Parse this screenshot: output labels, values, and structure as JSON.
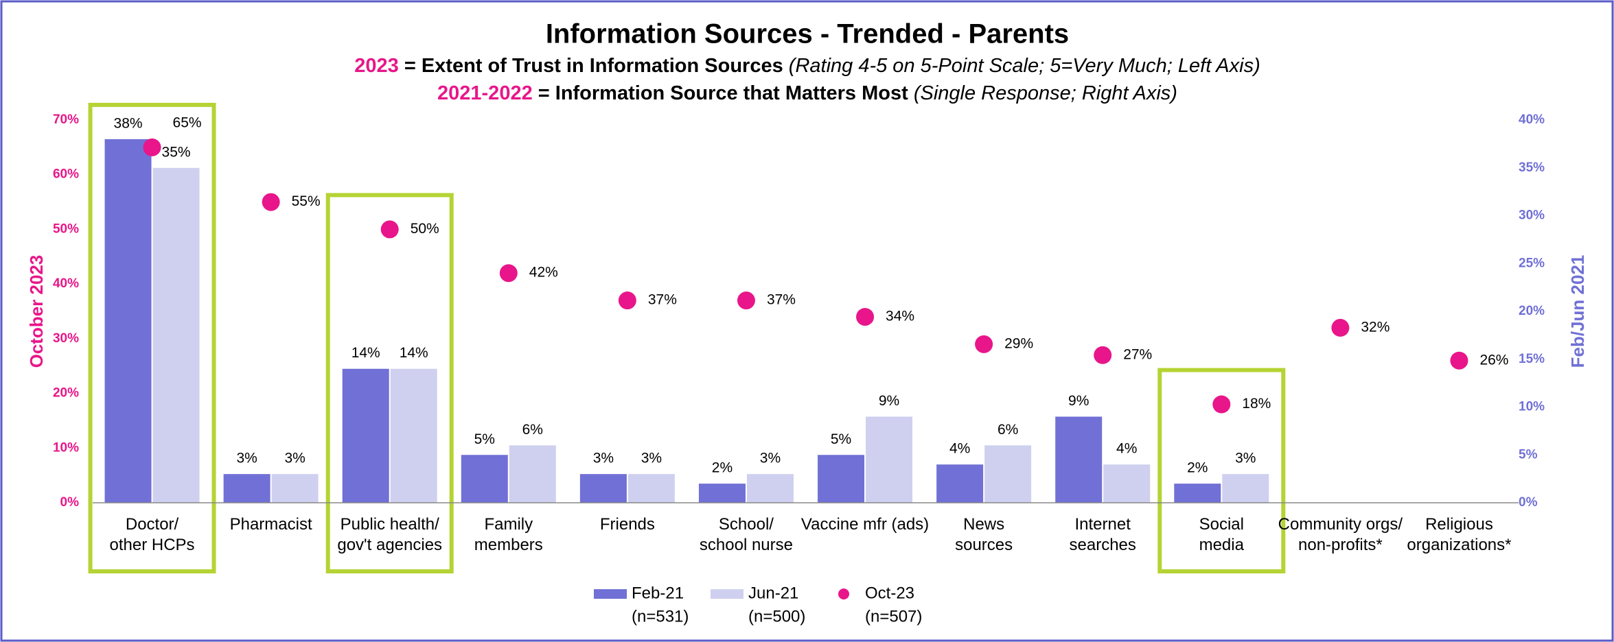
{
  "chart_data": {
    "type": "bar",
    "title": "Information Sources - Trended - Parents",
    "subtitle_lines": [
      {
        "year": "2023",
        "text": "= Extent of Trust in Information Sources",
        "note": "(Rating 4-5 on 5-Point Scale; 5=Very Much; Left Axis)"
      },
      {
        "year": "2021-2022",
        "text": "= Information Source that Matters Most",
        "note": "(Single Response; Right Axis)"
      }
    ],
    "y_label": "October 2023",
    "y2_label": "Feb/Jun 2021",
    "categories": [
      [
        "Doctor/",
        "other HCPs"
      ],
      [
        "Pharmacist"
      ],
      [
        "Public health/",
        "gov't agencies"
      ],
      [
        "Family",
        "members"
      ],
      [
        "Friends"
      ],
      [
        "School/",
        "school nurse"
      ],
      [
        "Vaccine mfr (ads)"
      ],
      [
        "News",
        "sources"
      ],
      [
        "Internet",
        "searches"
      ],
      [
        "Social",
        "media"
      ],
      [
        "Community orgs/",
        "non-profits*"
      ],
      [
        "Religious",
        "organizations*"
      ]
    ],
    "highlighted_categories": [
      0,
      2,
      9
    ],
    "highlight_color": "#b5d334",
    "series": [
      {
        "name": "Feb-21",
        "sample": "(n=531)",
        "color": "#7070d6",
        "axis": "y2",
        "mark": "bar",
        "values": [
          38,
          3,
          14,
          5,
          3,
          2,
          5,
          4,
          9,
          2,
          null,
          null
        ],
        "value_labels": [
          "38%",
          "3%",
          "14%",
          "5%",
          "3%",
          "2%",
          "5%",
          "4%",
          "9%",
          "2%",
          null,
          null
        ]
      },
      {
        "name": "Jun-21",
        "sample": "(n=500)",
        "color": "#cfd0ef",
        "axis": "y2",
        "mark": "bar",
        "values": [
          35,
          3,
          14,
          6,
          3,
          3,
          9,
          6,
          4,
          3,
          null,
          null
        ],
        "value_labels": [
          "35%",
          "3%",
          "14%",
          "6%",
          "3%",
          "3%",
          "9%",
          "6%",
          "4%",
          "3%",
          null,
          null
        ]
      },
      {
        "name": "Oct-23",
        "sample": "(n=507)",
        "color": "#e8168a",
        "axis": "y",
        "mark": "dot",
        "values": [
          65,
          55,
          50,
          42,
          37,
          37,
          34,
          29,
          27,
          18,
          32,
          26
        ],
        "value_labels": [
          "65%",
          "55%",
          "50%",
          "42%",
          "37%",
          "37%",
          "34%",
          "29%",
          "27%",
          "18%",
          "32%",
          "26%"
        ]
      }
    ],
    "ylim": [
      0,
      70
    ],
    "yticks": [
      {
        "value": 0,
        "label": "0%"
      },
      {
        "value": 10,
        "label": "10%"
      },
      {
        "value": 20,
        "label": "20%"
      },
      {
        "value": 30,
        "label": "30%"
      },
      {
        "value": 40,
        "label": "40%"
      },
      {
        "value": 50,
        "label": "50%"
      },
      {
        "value": 60,
        "label": "60%"
      },
      {
        "value": 70,
        "label": "70%"
      }
    ],
    "y2lim": [
      0,
      40
    ],
    "y2ticks": [
      {
        "value": 0,
        "label": "0%"
      },
      {
        "value": 5,
        "label": "5%"
      },
      {
        "value": 10,
        "label": "10%"
      },
      {
        "value": 15,
        "label": "15%"
      },
      {
        "value": 20,
        "label": "20%"
      },
      {
        "value": 25,
        "label": "25%"
      },
      {
        "value": 30,
        "label": "30%"
      },
      {
        "value": 35,
        "label": "35%"
      },
      {
        "value": 40,
        "label": "40%"
      }
    ],
    "legend": "bottom",
    "grid": false
  }
}
